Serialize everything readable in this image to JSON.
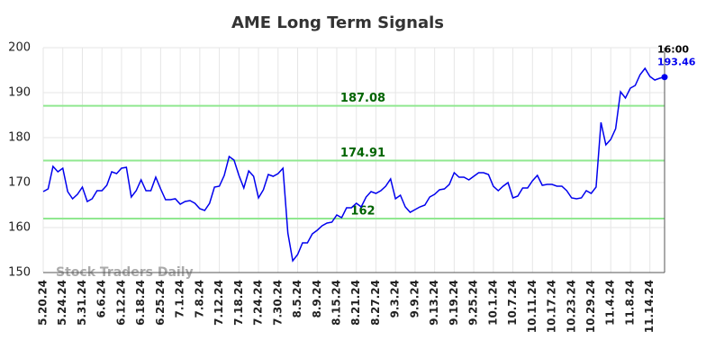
{
  "chart_data": {
    "type": "line",
    "title": "AME Long Term Signals",
    "watermark": "Stock Traders Daily",
    "categories": [
      "5.20.24",
      null,
      null,
      null,
      "5.24.24",
      null,
      null,
      null,
      "5.31.24",
      null,
      null,
      null,
      "6.6.24",
      null,
      null,
      null,
      "6.12.24",
      null,
      null,
      null,
      "6.18.24",
      null,
      null,
      null,
      "6.25.24",
      null,
      null,
      null,
      "7.1.24",
      null,
      null,
      null,
      "7.8.24",
      null,
      null,
      null,
      "7.12.24",
      null,
      null,
      null,
      "7.18.24",
      null,
      null,
      null,
      "7.24.24",
      null,
      null,
      null,
      "7.30.24",
      null,
      null,
      null,
      "8.5.24",
      null,
      null,
      null,
      "8.9.24",
      null,
      null,
      null,
      "8.15.24",
      null,
      null,
      null,
      "8.21.24",
      null,
      null,
      null,
      "8.27.24",
      null,
      null,
      null,
      "9.3.24",
      null,
      null,
      null,
      "9.9.24",
      null,
      null,
      null,
      "9.13.24",
      null,
      null,
      null,
      "9.19.24",
      null,
      null,
      null,
      "9.25.24",
      null,
      null,
      null,
      "10.1.24",
      null,
      null,
      null,
      "10.7.24",
      null,
      null,
      null,
      "10.11.24",
      null,
      null,
      null,
      "10.17.24",
      null,
      null,
      null,
      "10.23.24",
      null,
      null,
      null,
      "10.29.24",
      null,
      null,
      null,
      "11.4.24",
      null,
      null,
      null,
      "11.8.24",
      null,
      null,
      null,
      "11.14.24",
      null,
      null,
      null
    ],
    "series": [
      {
        "name": "AME",
        "color": "#0000ee",
        "values": [
          168.0,
          168.6,
          173.6,
          172.4,
          173.2,
          168.0,
          166.4,
          167.4,
          169.0,
          165.8,
          166.4,
          168.2,
          168.2,
          169.4,
          172.4,
          172.0,
          173.2,
          173.4,
          166.8,
          168.2,
          170.6,
          168.2,
          168.2,
          171.2,
          168.6,
          166.2,
          166.2,
          166.4,
          165.2,
          165.8,
          166.0,
          165.4,
          164.2,
          163.8,
          165.4,
          169.0,
          169.2,
          171.6,
          175.8,
          175.0,
          171.6,
          168.8,
          172.6,
          171.4,
          166.6,
          168.4,
          171.8,
          171.4,
          172.0,
          173.2,
          158.8,
          152.6,
          154.0,
          156.6,
          156.6,
          158.6,
          159.4,
          160.4,
          161.0,
          161.2,
          162.8,
          162.2,
          164.4,
          164.4,
          165.4,
          164.6,
          166.8,
          168.0,
          167.6,
          168.2,
          169.2,
          170.8,
          166.4,
          167.2,
          164.6,
          163.4,
          164.0,
          164.6,
          165.0,
          166.8,
          167.4,
          168.4,
          168.6,
          169.6,
          172.2,
          171.2,
          171.2,
          170.6,
          171.4,
          172.2,
          172.2,
          171.8,
          169.2,
          168.2,
          169.2,
          170.0,
          166.6,
          167.0,
          168.8,
          168.8,
          170.4,
          171.6,
          169.4,
          169.6,
          169.6,
          169.2,
          169.2,
          168.2,
          166.6,
          166.4,
          166.6,
          168.2,
          167.6,
          169.0,
          183.4,
          178.4,
          179.6,
          182.0,
          190.2,
          188.8,
          191.0,
          191.6,
          194.0,
          195.4,
          193.6,
          192.8,
          193.2,
          193.46
        ]
      }
    ],
    "last_time": "16:00",
    "levels": [
      187.08,
      174.91,
      162
    ],
    "level_color": "#90e890",
    "level_label_color": "#006400",
    "ylim": [
      150,
      200
    ],
    "yticks": [
      150,
      160,
      170,
      180,
      190,
      200
    ],
    "grid": true
  }
}
